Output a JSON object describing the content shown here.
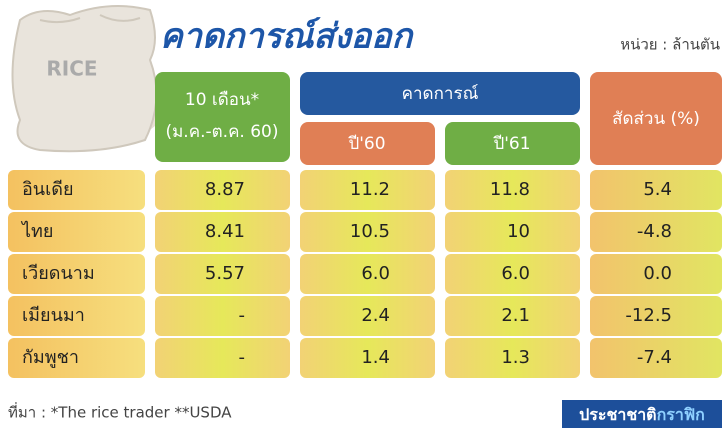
{
  "title": "คาดการณ์ส่งออก",
  "unit": "หน่วย : ล้านตัน",
  "bag_label": "RICE",
  "header": {
    "col1": [
      "10 เดือน*",
      "(ม.ค.-ต.ค. 60)"
    ],
    "forecast": "คาดการณ์",
    "year1": "ปี'60",
    "year2": "ปี'61",
    "share": "สัดส่วน (%)"
  },
  "table": {
    "rows": [
      [
        "อินเดีย",
        "8.87",
        "11.2",
        "11.8",
        "5.4"
      ],
      [
        "ไทย",
        "8.41",
        "10.5",
        "10",
        "-4.8"
      ],
      [
        "เวียดนาม",
        "5.57",
        "6.0",
        "6.0",
        "0.0"
      ],
      [
        "เมียนมา",
        "-",
        "2.4",
        "2.1",
        "-12.5"
      ],
      [
        "กัมพูชา",
        "-",
        "1.4",
        "1.3",
        "-7.4"
      ]
    ]
  },
  "footer": {
    "source": "ที่มา : *The rice trader **USDA",
    "brand": [
      "ประชาชาติ",
      "กราฟิก"
    ]
  }
}
